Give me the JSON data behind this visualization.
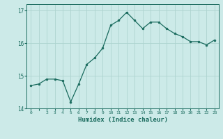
{
  "x": [
    0,
    1,
    2,
    3,
    4,
    5,
    6,
    7,
    8,
    9,
    10,
    11,
    12,
    13,
    14,
    15,
    16,
    17,
    18,
    19,
    20,
    21,
    22,
    23
  ],
  "y": [
    14.7,
    14.75,
    14.9,
    14.9,
    14.85,
    14.2,
    14.75,
    15.35,
    15.55,
    15.85,
    16.55,
    16.7,
    16.95,
    16.7,
    16.45,
    16.65,
    16.65,
    16.45,
    16.3,
    16.2,
    16.05,
    16.05,
    15.95,
    16.1
  ],
  "line_color": "#1a6b5e",
  "marker": "o",
  "marker_size": 2,
  "bg_color": "#cceae8",
  "grid_color": "#aed4d0",
  "xlabel": "Humidex (Indice chaleur)",
  "ylim": [
    14.0,
    17.2
  ],
  "yticks": [
    14,
    15,
    16,
    17
  ],
  "xtick_labels": [
    "0",
    "",
    "2",
    "3",
    "4",
    "5",
    "6",
    "7",
    "8",
    "9",
    "10",
    "11",
    "12",
    "13",
    "14",
    "15",
    "16",
    "17",
    "18",
    "19",
    "20",
    "21",
    "22",
    "23"
  ],
  "tick_color": "#1a6b5e",
  "label_color": "#1a6b5e"
}
